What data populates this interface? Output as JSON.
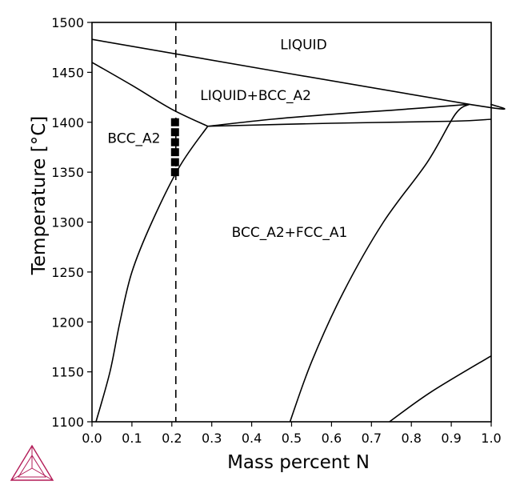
{
  "chart_data": {
    "type": "phase-diagram",
    "xlabel": "Mass percent N",
    "ylabel": "Temperature [°C]",
    "xlim": [
      0.0,
      1.0
    ],
    "ylim": [
      1100,
      1500
    ],
    "xticks": [
      "0.0",
      "0.1",
      "0.2",
      "0.3",
      "0.4",
      "0.5",
      "0.6",
      "0.7",
      "0.8",
      "0.9",
      "1.0"
    ],
    "yticks": [
      "1100",
      "1150",
      "1200",
      "1250",
      "1300",
      "1350",
      "1400",
      "1450",
      "1500"
    ],
    "grid": false,
    "regions": [
      {
        "label": "LIQUID",
        "x": 0.53,
        "y": 1478
      },
      {
        "label": "LIQUID+BCC_A2",
        "x": 0.41,
        "y": 1427
      },
      {
        "label": "BCC_A2",
        "x": 0.105,
        "y": 1384
      },
      {
        "label": "BCC_A2+FCC_A1",
        "x": 0.495,
        "y": 1290
      }
    ],
    "phase_boundaries": [
      {
        "name": "liquidus",
        "points": [
          [
            0.0,
            1483
          ],
          [
            0.945,
            1418
          ],
          [
            1.0,
            1418
          ]
        ]
      },
      {
        "name": "bcc-solidus",
        "points": [
          [
            0.0,
            1460
          ],
          [
            0.1,
            1437
          ],
          [
            0.2,
            1413
          ],
          [
            0.29,
            1396
          ]
        ]
      },
      {
        "name": "liquid-bcc-lower",
        "points": [
          [
            0.29,
            1396
          ],
          [
            0.45,
            1403
          ],
          [
            0.6,
            1408
          ],
          [
            0.75,
            1412
          ],
          [
            0.945,
            1418
          ]
        ]
      },
      {
        "name": "three-phase-line",
        "points": [
          [
            0.29,
            1396
          ],
          [
            0.6,
            1399
          ],
          [
            0.9,
            1401
          ],
          [
            1.0,
            1403
          ]
        ]
      },
      {
        "name": "bcc-boundary-left",
        "points": [
          [
            0.29,
            1396
          ],
          [
            0.22,
            1356
          ],
          [
            0.15,
            1300
          ],
          [
            0.1,
            1250
          ],
          [
            0.07,
            1200
          ],
          [
            0.045,
            1150
          ],
          [
            0.01,
            1100
          ]
        ]
      },
      {
        "name": "fcc-boundary-middle",
        "points": [
          [
            0.496,
            1100
          ],
          [
            0.55,
            1160
          ],
          [
            0.63,
            1230
          ],
          [
            0.73,
            1300
          ],
          [
            0.84,
            1360
          ],
          [
            0.91,
            1408
          ],
          [
            0.945,
            1418
          ]
        ]
      },
      {
        "name": "fcc-boundary-lower-right",
        "points": [
          [
            0.745,
            1100
          ],
          [
            0.85,
            1130
          ],
          [
            1.0,
            1166
          ]
        ]
      }
    ],
    "reference_line": {
      "x": 0.21,
      "style": "dashed"
    },
    "markers": {
      "x": 0.208,
      "y": [
        1400,
        1390,
        1380,
        1370,
        1360,
        1350
      ],
      "shape": "square"
    },
    "colors": {
      "line": "#000000",
      "logo": "#b31b57"
    }
  }
}
